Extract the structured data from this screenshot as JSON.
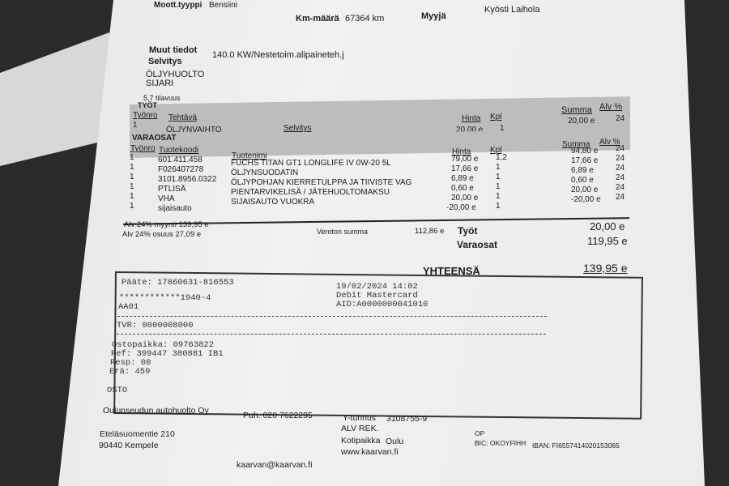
{
  "header": {
    "engine_label": "Moott.tyyppi",
    "engine_value": "Bensiini",
    "km_label": "Km-määrä",
    "km_value": "67364 km",
    "seller_label": "Myyjä",
    "seller_value": "Kyösti Laihola"
  },
  "info": {
    "other_label": "Muut tiedot",
    "other_value": "140.0 KW/Nestetoim.alipaineteh.j",
    "explanation_label": "Selvitys",
    "explanation_lines": [
      "ÖLJYHUOLTO",
      "SIJARI"
    ],
    "volume": "5,7 tilavuus"
  },
  "work": {
    "title": "TYÖT",
    "headers": {
      "no": "Työnro",
      "task": "Tehtävä",
      "expl": "Selvitys",
      "price": "Hinta",
      "qty": "Kpl",
      "sum": "Summa",
      "vat": "Alv %"
    },
    "rows": [
      {
        "no": "1",
        "task": "ÖLJYNVAIHTO",
        "price": "20,00 e",
        "qty": "1",
        "sum": "20,00 e",
        "vat": "24"
      }
    ]
  },
  "parts": {
    "title": "VARAOSAT",
    "headers": {
      "no": "Työnro",
      "code": "Tuotekoodi",
      "name": "Tuotenimi",
      "price": "Hinta",
      "qty": "Kpl",
      "sum": "Summa",
      "vat": "Alv %"
    },
    "rows": [
      {
        "no": "1",
        "code": "601.411.458",
        "name": "FUCHS TITAN GT1 LONGLIFE IV 0W-20 5L",
        "price": "79,00 e",
        "qty": "1,2",
        "sum": "94,80 e",
        "vat": "24"
      },
      {
        "no": "1",
        "code": "F026407278",
        "name": "ÖLJYNSUODATIN",
        "price": "17,66 e",
        "qty": "1",
        "sum": "17,66 e",
        "vat": "24"
      },
      {
        "no": "1",
        "code": "3101.8956.0322",
        "name": "ÖLJYPOHJAN KIERRETULPPA JA TIIVISTE VAG",
        "price": "6,89 e",
        "qty": "1",
        "sum": "6,89 e",
        "vat": "24"
      },
      {
        "no": "1",
        "code": "PTLISÄ",
        "name": "PIENTARVIKELISÄ / JÄTEHUOLTOMAKSU",
        "price": "0,60 e",
        "qty": "1",
        "sum": "0,60 e",
        "vat": "24"
      },
      {
        "no": "1",
        "code": "VHA",
        "name": "SIJAISAUTO VUOKRA",
        "price": "20,00 e",
        "qty": "1",
        "sum": "20,00 e",
        "vat": "24"
      },
      {
        "no": "1",
        "code": "sijaisauto",
        "name": "",
        "price": "-20,00 e",
        "qty": "1",
        "sum": "-20,00 e",
        "vat": "24"
      }
    ]
  },
  "totals": {
    "vat_sales": "Alv 24% myynti 139,95 e",
    "vat_share": "Alv 24% osuus 27,09 e",
    "net_label": "Veroton summa",
    "net_value": "112,86 e",
    "work_label": "Työt",
    "work_value": "20,00 e",
    "parts_label": "Varaosat",
    "parts_value": "119,95 e",
    "total_label": "YHTEENSÄ",
    "total_value": "139,95 e"
  },
  "card": {
    "terminal": "Pääte: 17860631-816553",
    "datetime": "19/02/2024 14:02",
    "card_no": "************1940-4",
    "card_type": "Debit Mastercard",
    "aa": "AA01",
    "aid": "AID:A0000000041010",
    "tvr": "TVR: 0000008000",
    "place": "Ostopaikka: 09763822",
    "ref": "Ref: 399447 380881 IB1",
    "resp": "Resp: 00",
    "batch": "Erä: 459",
    "type": "OSTO"
  },
  "footer": {
    "company": "Oulunseudun autohuolto Oy",
    "phone": "Puh. 020 7622295",
    "ytunnus_label": "Y-tunnus",
    "ytunnus": "3108755-9",
    "alv": "ALV REK.",
    "street": "Eteläsuomentie 210",
    "city": "90440 Kempele",
    "home_label": "Kotipaikka",
    "home": "Oulu",
    "web": "www.kaarvan.fi",
    "email": "kaarvan@kaarvan.fi",
    "bank": "OP",
    "bic": "BIC: OKOYFIHH",
    "iban": "IBAN: FI6557414020153065"
  }
}
